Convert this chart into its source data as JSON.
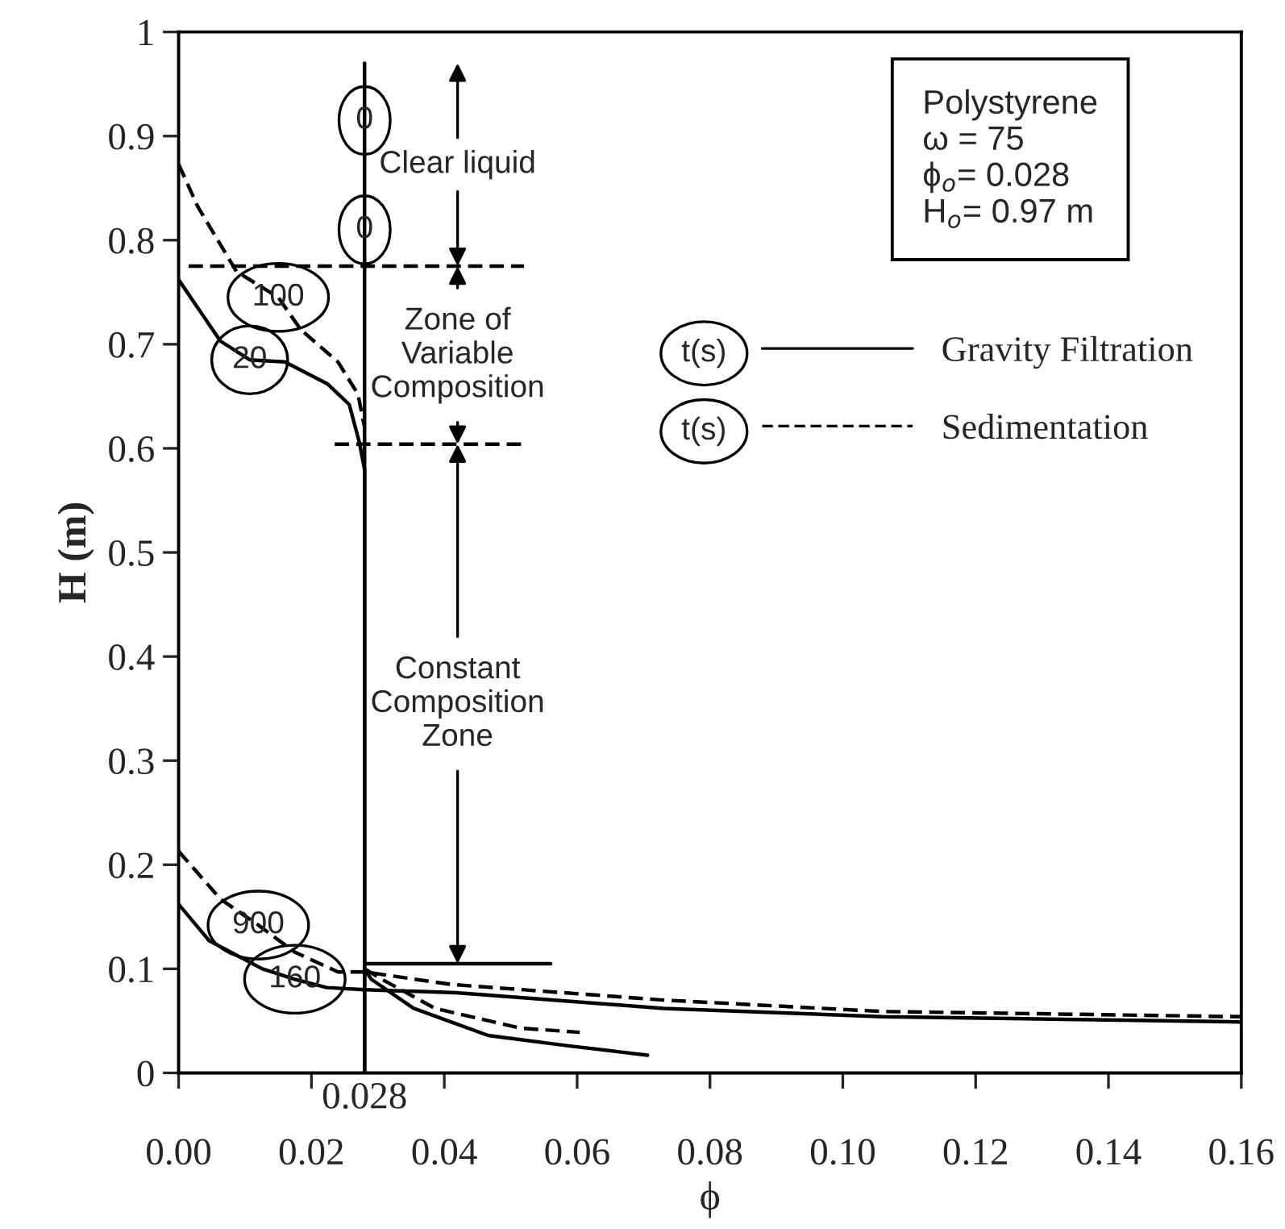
{
  "chart_data": {
    "type": "line",
    "xlabel": "ϕ",
    "ylabel": "H (m)",
    "xlim": [
      0,
      0.16
    ],
    "ylim": [
      0,
      1
    ],
    "xticks": [
      {
        "value": 0,
        "label": "0.00"
      },
      {
        "value": 0.02,
        "label": "0.02"
      },
      {
        "value": 0.04,
        "label": "0.04"
      },
      {
        "value": 0.06,
        "label": "0.06"
      },
      {
        "value": 0.08,
        "label": "0.08"
      },
      {
        "value": 0.1,
        "label": "0.10"
      },
      {
        "value": 0.12,
        "label": "0.12"
      },
      {
        "value": 0.14,
        "label": "0.14"
      },
      {
        "value": 0.16,
        "label": "0.16"
      }
    ],
    "yticks": [
      0,
      0.1,
      0.2,
      0.3,
      0.4,
      0.5,
      0.6,
      0.7,
      0.8,
      0.9,
      1
    ],
    "grid": false,
    "legend": "right",
    "marker": "none",
    "series": [
      {
        "name": "Gravity Filtration",
        "color": "#000000",
        "line_style": "solid",
        "x": [
          0.028,
          0.028
        ],
        "values": [
          0.97,
          0
        ]
      },
      {
        "color": "#000000",
        "line_style": "solid",
        "x": [
          0,
          0.0063,
          0.0107,
          0.016,
          0.0224,
          0.0257,
          0.0272,
          0.028,
          0.028
        ],
        "values": [
          0.762,
          0.703,
          0.685,
          0.683,
          0.662,
          0.642,
          0.606,
          0.58,
          0
        ]
      },
      {
        "name": "Sedimentation",
        "color": "#000000",
        "line_style": "dashed",
        "x": [
          0,
          0.0029,
          0.0087,
          0.015,
          0.0184,
          0.024,
          0.027,
          0.028
        ],
        "values": [
          0.873,
          0.832,
          0.77,
          0.745,
          0.714,
          0.683,
          0.652,
          0.62
        ]
      },
      {
        "color": "#000000",
        "line_style": "dashed",
        "x": [
          0.0015,
          0.052
        ],
        "values": [
          0.775,
          0.775
        ]
      },
      {
        "color": "#000000",
        "line_style": "dashed",
        "x": [
          0.0235,
          0.052
        ],
        "values": [
          0.604,
          0.604
        ]
      },
      {
        "color": "#000000",
        "line_style": "solid",
        "x": [
          0.028,
          0.056
        ],
        "values": [
          0.105,
          0.105
        ]
      },
      {
        "color": "#000000",
        "line_style": "solid",
        "x": [
          0,
          0.0046,
          0.0126,
          0.0175,
          0.0223,
          0.028,
          0.0418,
          0.073,
          0.106,
          0.16
        ],
        "values": [
          0.162,
          0.127,
          0.1,
          0.09,
          0.082,
          0.08,
          0.077,
          0.062,
          0.054,
          0.049
        ]
      },
      {
        "color": "#000000",
        "line_style": "solid",
        "x": [
          0.028,
          0.029,
          0.0354,
          0.0466,
          0.0587,
          0.0706
        ],
        "values": [
          0.1,
          0.09,
          0.062,
          0.036,
          0.026,
          0.017
        ]
      },
      {
        "color": "#000000",
        "line_style": "dashed",
        "x": [
          0,
          0.0063,
          0.012,
          0.0175,
          0.024,
          0.028,
          0.041,
          0.073,
          0.106,
          0.16
        ],
        "values": [
          0.213,
          0.167,
          0.142,
          0.116,
          0.097,
          0.097,
          0.085,
          0.07,
          0.059,
          0.054
        ]
      },
      {
        "color": "#000000",
        "line_style": "dashed",
        "x": [
          0.028,
          0.0306,
          0.0386,
          0.0515,
          0.0604
        ],
        "values": [
          0.1,
          0.09,
          0.062,
          0.043,
          0.039
        ]
      }
    ],
    "annotations": [
      {
        "text": "Clear liquid",
        "x": 0.042,
        "y": 0.775
      },
      {
        "text": "Zone of\nVariable\nComposition",
        "x": 0.042,
        "y": 0.604
      },
      {
        "text": "Constant\nComposition\nZone",
        "x": 0.042,
        "y": 0.105
      },
      {
        "text": "0.028",
        "x": 0.028,
        "y": 0
      },
      {
        "text": "0",
        "x": 0.028,
        "y": 0.915
      },
      {
        "text": "0",
        "x": 0.028,
        "y": 0.81
      },
      {
        "text": "100",
        "x": 0.015,
        "y": 0.745
      },
      {
        "text": "20",
        "x": 0.0107,
        "y": 0.685
      },
      {
        "text": "900",
        "x": 0.012,
        "y": 0.142
      },
      {
        "text": "160",
        "x": 0.0175,
        "y": 0.09
      },
      "t(s)",
      "t(s)",
      "Polystyrene\nω = 75\nϕ$_{o}$= 0.028\nH$_{o}$= 0.97 m"
    ]
  }
}
